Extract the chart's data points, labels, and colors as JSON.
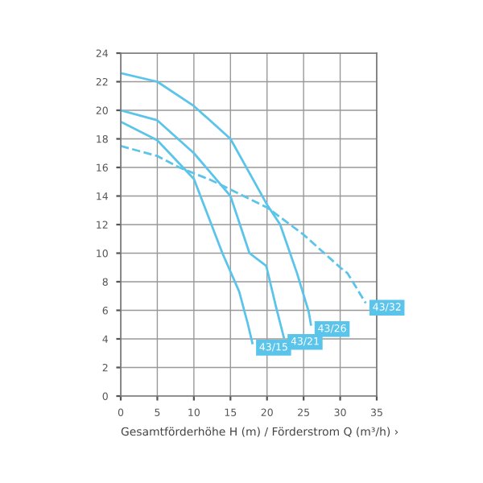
{
  "chart_data": {
    "type": "line",
    "xlabel": "Gesamtförderhöhe H (m) / Förderstrom Q (m³/h) ›",
    "xlim": [
      0,
      35
    ],
    "xticks": [
      0,
      5,
      10,
      15,
      20,
      25,
      30,
      35
    ],
    "ylim": [
      0,
      24
    ],
    "yticks": [
      0,
      2,
      4,
      6,
      8,
      10,
      12,
      14,
      16,
      18,
      20,
      22,
      24
    ],
    "grid": true,
    "marker": "none",
    "series": [
      {
        "name": "43/26",
        "color": "#5bc4ea",
        "line_style": "solid",
        "x": [
          0,
          5,
          10,
          15,
          20,
          21.8,
          24.1,
          25.7,
          26
        ],
        "values": [
          22.6,
          22,
          20.3,
          18,
          13.4,
          12,
          8.6,
          5.9,
          5.0
        ]
      },
      {
        "name": "43/21",
        "color": "#5bc4ea",
        "line_style": "solid",
        "x": [
          0,
          5,
          10,
          15,
          17.6,
          19.9,
          21.2,
          22.3
        ],
        "values": [
          20,
          19.3,
          17,
          14,
          10,
          9.1,
          6.3,
          4.1
        ]
      },
      {
        "name": "43/15",
        "color": "#5bc4ea",
        "line_style": "solid",
        "x": [
          0,
          5,
          10,
          13.9,
          16.2,
          17.4,
          18
        ],
        "values": [
          19.2,
          17.9,
          15.2,
          10,
          7.3,
          5.0,
          3.7
        ]
      },
      {
        "name": "43/32",
        "color": "#5bc4ea",
        "line_style": "dashed",
        "x": [
          0,
          5,
          8,
          12.4,
          20,
          25,
          30,
          31,
          33.5
        ],
        "values": [
          17.5,
          16.8,
          16,
          15.1,
          13.2,
          11.3,
          9.0,
          8.6,
          6.5
        ]
      }
    ]
  }
}
